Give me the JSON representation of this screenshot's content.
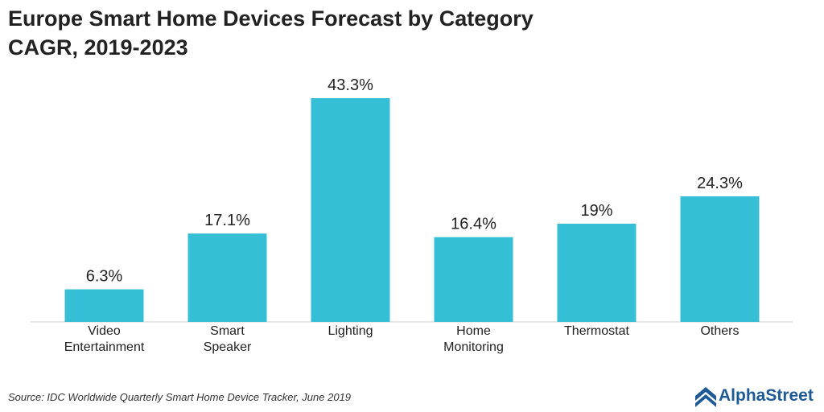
{
  "chart_data": {
    "type": "bar",
    "title": "Europe Smart Home Devices Forecast by Category",
    "subtitle": "CAGR, 2019-2023",
    "categories": [
      "Video\nEntertainment",
      "Smart\nSpeaker",
      "Lighting",
      "Home\nMonitoring",
      "Thermostat",
      "Others"
    ],
    "values": [
      6.3,
      17.1,
      43.3,
      16.4,
      19,
      24.3
    ],
    "value_labels": [
      "6.3%",
      "17.1%",
      "43.3%",
      "16.4%",
      "19%",
      "24.3%"
    ],
    "color": "#35bfd6",
    "source": "Source: IDC Worldwide Quarterly Smart Home Device Tracker, June 2019",
    "logo": "AlphaStreet"
  }
}
